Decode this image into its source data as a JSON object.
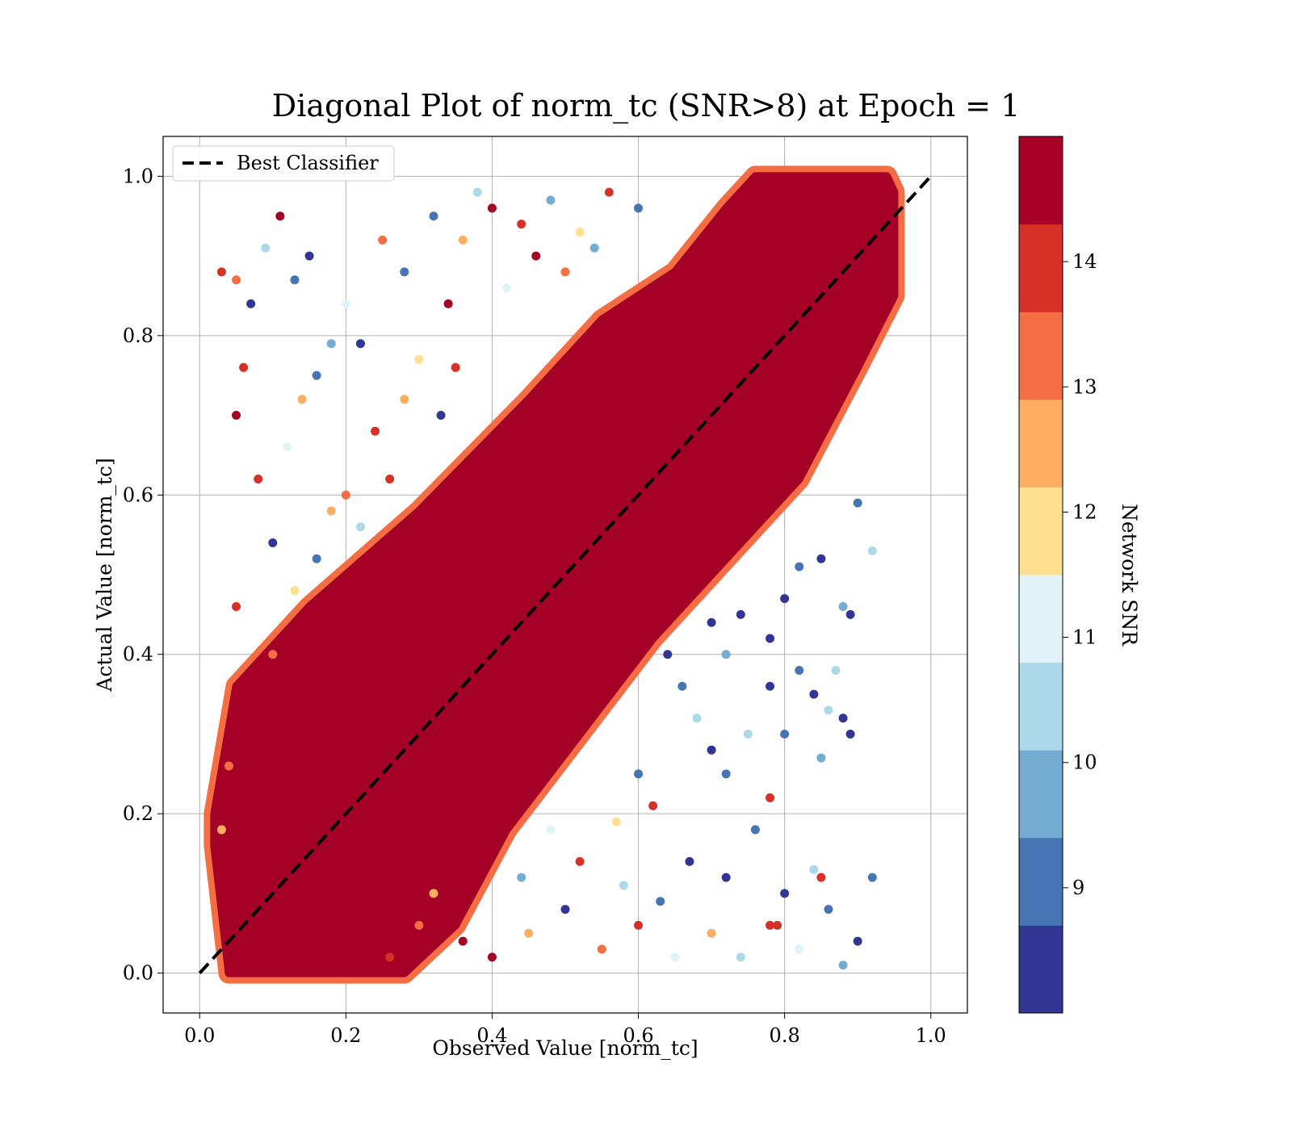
{
  "chart_data": {
    "type": "scatter",
    "title": "Diagonal Plot of norm_tc (SNR>8) at Epoch = 1",
    "xlabel": "Observed Value [norm_tc]",
    "ylabel": "Actual Value [norm_tc]",
    "xlim": [
      -0.05,
      1.05
    ],
    "ylim": [
      -0.05,
      1.05
    ],
    "xticks": [
      "0.0",
      "0.2",
      "0.4",
      "0.6",
      "0.8",
      "1.0"
    ],
    "yticks": [
      "0.0",
      "0.2",
      "0.4",
      "0.6",
      "0.8",
      "1.0"
    ],
    "grid": true,
    "legend": {
      "location": "upper-left",
      "entries": [
        "Best Classifier"
      ]
    },
    "reference_line": {
      "label": "Best Classifier",
      "style": "dashed",
      "color": "#000000",
      "x": [
        0,
        1
      ],
      "y": [
        0,
        1
      ]
    },
    "colorbar": {
      "label": "Network SNR",
      "range": [
        8,
        15
      ],
      "ticks": [
        "9",
        "10",
        "11",
        "12",
        "13",
        "14"
      ],
      "bins": [
        {
          "from": 8.0,
          "to": 8.7,
          "color": "#313695"
        },
        {
          "from": 8.7,
          "to": 9.4,
          "color": "#4575b4"
        },
        {
          "from": 9.4,
          "to": 10.1,
          "color": "#74add1"
        },
        {
          "from": 10.1,
          "to": 10.8,
          "color": "#abd9e9"
        },
        {
          "from": 10.8,
          "to": 11.5,
          "color": "#e0f3f8"
        },
        {
          "from": 11.5,
          "to": 12.2,
          "color": "#fee090"
        },
        {
          "from": 12.2,
          "to": 12.9,
          "color": "#fdae61"
        },
        {
          "from": 12.9,
          "to": 13.6,
          "color": "#f46d43"
        },
        {
          "from": 13.6,
          "to": 14.3,
          "color": "#d73027"
        },
        {
          "from": 14.3,
          "to": 15.0,
          "color": "#a50026"
        }
      ]
    },
    "series": [
      {
        "name": "",
        "points": [
          {
            "x": 0.03,
            "y": 0.18,
            "snr": 12.5
          },
          {
            "x": 0.04,
            "y": 0.26,
            "snr": 13.2
          },
          {
            "x": 0.05,
            "y": 0.46,
            "snr": 13.6
          },
          {
            "x": 0.06,
            "y": 0.76,
            "snr": 14.1
          },
          {
            "x": 0.05,
            "y": 0.7,
            "snr": 14.8
          },
          {
            "x": 0.03,
            "y": 0.88,
            "snr": 14.0
          },
          {
            "x": 0.05,
            "y": 0.87,
            "snr": 13.1
          },
          {
            "x": 0.07,
            "y": 0.84,
            "snr": 8.3
          },
          {
            "x": 0.09,
            "y": 0.91,
            "snr": 10.5
          },
          {
            "x": 0.11,
            "y": 0.95,
            "snr": 14.6
          },
          {
            "x": 0.13,
            "y": 0.87,
            "snr": 9.1
          },
          {
            "x": 0.15,
            "y": 0.9,
            "snr": 8.4
          },
          {
            "x": 0.08,
            "y": 0.62,
            "snr": 14.2
          },
          {
            "x": 0.1,
            "y": 0.54,
            "snr": 8.6
          },
          {
            "x": 0.12,
            "y": 0.66,
            "snr": 11.3
          },
          {
            "x": 0.14,
            "y": 0.72,
            "snr": 12.4
          },
          {
            "x": 0.16,
            "y": 0.75,
            "snr": 8.8
          },
          {
            "x": 0.18,
            "y": 0.79,
            "snr": 9.7
          },
          {
            "x": 0.18,
            "y": 0.58,
            "snr": 12.8
          },
          {
            "x": 0.2,
            "y": 0.84,
            "snr": 10.9
          },
          {
            "x": 0.22,
            "y": 0.79,
            "snr": 8.5
          },
          {
            "x": 0.24,
            "y": 0.68,
            "snr": 14.0
          },
          {
            "x": 0.25,
            "y": 0.92,
            "snr": 13.4
          },
          {
            "x": 0.28,
            "y": 0.88,
            "snr": 9.3
          },
          {
            "x": 0.3,
            "y": 0.77,
            "snr": 11.8
          },
          {
            "x": 0.32,
            "y": 0.95,
            "snr": 8.7
          },
          {
            "x": 0.34,
            "y": 0.84,
            "snr": 14.5
          },
          {
            "x": 0.36,
            "y": 0.92,
            "snr": 12.3
          },
          {
            "x": 0.38,
            "y": 0.98,
            "snr": 10.2
          },
          {
            "x": 0.4,
            "y": 0.96,
            "snr": 14.7
          },
          {
            "x": 0.44,
            "y": 0.94,
            "snr": 13.9
          },
          {
            "x": 0.48,
            "y": 0.97,
            "snr": 9.6
          },
          {
            "x": 0.52,
            "y": 0.93,
            "snr": 12.0
          },
          {
            "x": 0.56,
            "y": 0.98,
            "snr": 14.2
          },
          {
            "x": 0.6,
            "y": 0.96,
            "snr": 8.9
          },
          {
            "x": 0.1,
            "y": 0.4,
            "snr": 13.5
          },
          {
            "x": 0.13,
            "y": 0.48,
            "snr": 11.5
          },
          {
            "x": 0.16,
            "y": 0.52,
            "snr": 9.0
          },
          {
            "x": 0.2,
            "y": 0.6,
            "snr": 13.0
          },
          {
            "x": 0.22,
            "y": 0.56,
            "snr": 10.6
          },
          {
            "x": 0.26,
            "y": 0.62,
            "snr": 14.1
          },
          {
            "x": 0.28,
            "y": 0.72,
            "snr": 12.6
          },
          {
            "x": 0.33,
            "y": 0.7,
            "snr": 8.2
          },
          {
            "x": 0.35,
            "y": 0.76,
            "snr": 13.7
          },
          {
            "x": 0.42,
            "y": 0.86,
            "snr": 11.1
          },
          {
            "x": 0.46,
            "y": 0.9,
            "snr": 14.3
          },
          {
            "x": 0.5,
            "y": 0.88,
            "snr": 12.9
          },
          {
            "x": 0.54,
            "y": 0.91,
            "snr": 10.0
          },
          {
            "x": 0.4,
            "y": 0.02,
            "snr": 14.6
          },
          {
            "x": 0.45,
            "y": 0.05,
            "snr": 12.2
          },
          {
            "x": 0.5,
            "y": 0.08,
            "snr": 8.4
          },
          {
            "x": 0.55,
            "y": 0.03,
            "snr": 13.3
          },
          {
            "x": 0.58,
            "y": 0.11,
            "snr": 10.7
          },
          {
            "x": 0.6,
            "y": 0.06,
            "snr": 14.0
          },
          {
            "x": 0.63,
            "y": 0.09,
            "snr": 9.2
          },
          {
            "x": 0.65,
            "y": 0.02,
            "snr": 11.4
          },
          {
            "x": 0.67,
            "y": 0.14,
            "snr": 8.6
          },
          {
            "x": 0.7,
            "y": 0.05,
            "snr": 12.7
          },
          {
            "x": 0.72,
            "y": 0.12,
            "snr": 8.3
          },
          {
            "x": 0.74,
            "y": 0.02,
            "snr": 10.3
          },
          {
            "x": 0.76,
            "y": 0.18,
            "snr": 9.0
          },
          {
            "x": 0.78,
            "y": 0.06,
            "snr": 14.2
          },
          {
            "x": 0.8,
            "y": 0.1,
            "snr": 8.5
          },
          {
            "x": 0.82,
            "y": 0.03,
            "snr": 11.0
          },
          {
            "x": 0.84,
            "y": 0.13,
            "snr": 10.4
          },
          {
            "x": 0.86,
            "y": 0.08,
            "snr": 8.7
          },
          {
            "x": 0.88,
            "y": 0.01,
            "snr": 9.5
          },
          {
            "x": 0.9,
            "y": 0.04,
            "snr": 8.2
          },
          {
            "x": 0.92,
            "y": 0.12,
            "snr": 9.3
          },
          {
            "x": 0.85,
            "y": 0.12,
            "snr": 13.9
          },
          {
            "x": 0.79,
            "y": 0.06,
            "snr": 14.1
          },
          {
            "x": 0.78,
            "y": 0.22,
            "snr": 14.0
          },
          {
            "x": 0.75,
            "y": 0.3,
            "snr": 10.1
          },
          {
            "x": 0.78,
            "y": 0.36,
            "snr": 8.6
          },
          {
            "x": 0.8,
            "y": 0.3,
            "snr": 8.9
          },
          {
            "x": 0.82,
            "y": 0.38,
            "snr": 9.1
          },
          {
            "x": 0.84,
            "y": 0.35,
            "snr": 8.4
          },
          {
            "x": 0.86,
            "y": 0.33,
            "snr": 10.6
          },
          {
            "x": 0.88,
            "y": 0.32,
            "snr": 8.3
          },
          {
            "x": 0.89,
            "y": 0.3,
            "snr": 8.2
          },
          {
            "x": 0.85,
            "y": 0.27,
            "snr": 9.6
          },
          {
            "x": 0.87,
            "y": 0.38,
            "snr": 10.2
          },
          {
            "x": 0.88,
            "y": 0.46,
            "snr": 9.8
          },
          {
            "x": 0.89,
            "y": 0.45,
            "snr": 8.5
          },
          {
            "x": 0.92,
            "y": 0.53,
            "snr": 10.4
          },
          {
            "x": 0.9,
            "y": 0.59,
            "snr": 8.8
          },
          {
            "x": 0.85,
            "y": 0.52,
            "snr": 8.4
          },
          {
            "x": 0.82,
            "y": 0.51,
            "snr": 9.0
          },
          {
            "x": 0.8,
            "y": 0.47,
            "snr": 8.6
          },
          {
            "x": 0.78,
            "y": 0.42,
            "snr": 8.4
          },
          {
            "x": 0.72,
            "y": 0.25,
            "snr": 8.7
          },
          {
            "x": 0.7,
            "y": 0.28,
            "snr": 8.4
          },
          {
            "x": 0.68,
            "y": 0.32,
            "snr": 10.5
          },
          {
            "x": 0.66,
            "y": 0.36,
            "snr": 9.3
          },
          {
            "x": 0.64,
            "y": 0.4,
            "snr": 8.5
          },
          {
            "x": 0.62,
            "y": 0.21,
            "snr": 14.1
          },
          {
            "x": 0.6,
            "y": 0.25,
            "snr": 8.9
          },
          {
            "x": 0.57,
            "y": 0.19,
            "snr": 12.1
          },
          {
            "x": 0.52,
            "y": 0.14,
            "snr": 13.6
          },
          {
            "x": 0.48,
            "y": 0.18,
            "snr": 11.2
          },
          {
            "x": 0.44,
            "y": 0.12,
            "snr": 9.4
          },
          {
            "x": 0.36,
            "y": 0.04,
            "snr": 14.4
          },
          {
            "x": 0.32,
            "y": 0.1,
            "snr": 12.5
          },
          {
            "x": 0.3,
            "y": 0.06,
            "snr": 13.1
          },
          {
            "x": 0.26,
            "y": 0.02,
            "snr": 14.2
          },
          {
            "x": 0.7,
            "y": 0.44,
            "snr": 8.6
          },
          {
            "x": 0.72,
            "y": 0.4,
            "snr": 9.8
          },
          {
            "x": 0.74,
            "y": 0.45,
            "snr": 8.3
          }
        ]
      }
    ],
    "dense_region": {
      "description_color_snr": 14.9,
      "along_diagonal_upper_offset": [
        [
          0.02,
          0.16
        ],
        [
          0.02,
          0.2
        ],
        [
          0.05,
          0.36
        ],
        [
          0.15,
          0.46
        ],
        [
          0.3,
          0.58
        ],
        [
          0.45,
          0.72
        ],
        [
          0.55,
          0.82
        ],
        [
          0.65,
          0.88
        ],
        [
          0.72,
          0.96
        ],
        [
          0.76,
          1.0
        ],
        [
          0.94,
          1.0
        ]
      ],
      "along_diagonal_lower_offset": [
        [
          0.95,
          0.98
        ],
        [
          0.95,
          0.85
        ],
        [
          0.9,
          0.76
        ],
        [
          0.82,
          0.62
        ],
        [
          0.72,
          0.52
        ],
        [
          0.62,
          0.42
        ],
        [
          0.52,
          0.3
        ],
        [
          0.42,
          0.18
        ],
        [
          0.35,
          0.06
        ],
        [
          0.28,
          0.0
        ],
        [
          0.04,
          0.0
        ]
      ]
    }
  }
}
